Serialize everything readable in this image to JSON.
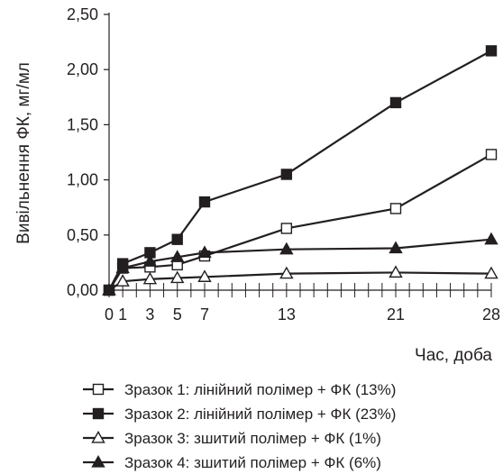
{
  "chart_data": {
    "type": "line",
    "title": "",
    "xlabel": "Час, доба",
    "ylabel": "Вивільнення ФК, мг/мл",
    "xlim": [
      0,
      28
    ],
    "ylim": [
      0,
      2.5
    ],
    "x_tick_labels": [
      "0",
      "1",
      "3",
      "5",
      "7",
      "13",
      "21",
      "28"
    ],
    "x_tick_values": [
      0,
      1,
      3,
      5,
      7,
      13,
      21,
      28
    ],
    "x_minor_step": 1,
    "y_ticks": [
      {
        "value": 0,
        "label": "0,00"
      },
      {
        "value": 0.5,
        "label": "0,50"
      },
      {
        "value": 1.0,
        "label": "1,00"
      },
      {
        "value": 1.5,
        "label": "1,50"
      },
      {
        "value": 2.0,
        "label": "2,00"
      },
      {
        "value": 2.5,
        "label": "2,50"
      }
    ],
    "grid": false,
    "legend_position": "bottom",
    "color": "#231f20",
    "x": [
      0,
      1,
      3,
      5,
      7,
      13,
      21,
      28
    ],
    "series": [
      {
        "name": "Зразок 1: лінійний полімер + ФК (13%)",
        "marker": "square-open",
        "values": [
          0,
          0.2,
          0.21,
          0.23,
          0.31,
          0.56,
          0.74,
          1.23
        ]
      },
      {
        "name": "Зразок 2: лінійний полімер + ФК (23%)",
        "marker": "square-filled",
        "values": [
          0,
          0.24,
          0.34,
          0.46,
          0.8,
          1.05,
          1.7,
          2.17
        ]
      },
      {
        "name": "Зразок 3: зшитий полімер + ФК (1%)",
        "marker": "triangle-open",
        "values": [
          0,
          0.08,
          0.1,
          0.11,
          0.12,
          0.15,
          0.16,
          0.15
        ]
      },
      {
        "name": "Зразок 4: зшитий полімер + ФК (6%)",
        "marker": "triangle-filled",
        "values": [
          0,
          0.2,
          0.26,
          0.3,
          0.34,
          0.37,
          0.38,
          0.46
        ]
      }
    ]
  }
}
